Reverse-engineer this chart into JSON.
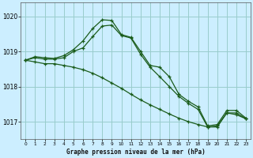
{
  "xlabel": "Graphe pression niveau de la mer (hPa)",
  "background_color": "#cceeff",
  "grid_color": "#99cccc",
  "line_color": "#1a5c1a",
  "xlim": [
    -0.5,
    23.5
  ],
  "ylim": [
    1016.5,
    1020.4
  ],
  "yticks": [
    1017,
    1018,
    1019,
    1020
  ],
  "xticks": [
    0,
    1,
    2,
    3,
    4,
    5,
    6,
    7,
    8,
    9,
    10,
    11,
    12,
    13,
    14,
    15,
    16,
    17,
    18,
    19,
    20,
    21,
    22,
    23
  ],
  "line1_x": [
    0,
    1,
    2,
    3,
    4,
    5,
    6,
    7,
    8,
    9,
    10,
    11,
    12,
    13,
    14,
    15,
    16,
    17,
    18,
    19,
    20,
    21,
    22,
    23
  ],
  "line1_y": [
    1018.75,
    1018.85,
    1018.82,
    1018.8,
    1018.88,
    1019.05,
    1019.3,
    1019.65,
    1019.9,
    1019.88,
    1019.48,
    1019.4,
    1019.0,
    1018.6,
    1018.55,
    1018.28,
    1017.78,
    1017.58,
    1017.42,
    1016.88,
    1016.92,
    1017.32,
    1017.32,
    1017.1
  ],
  "line2_x": [
    0,
    1,
    2,
    3,
    4,
    5,
    6,
    7,
    8,
    9,
    10,
    11,
    12,
    13,
    14,
    15,
    16,
    17,
    18,
    19,
    20,
    21,
    22,
    23
  ],
  "line2_y": [
    1018.75,
    1018.82,
    1018.78,
    1018.78,
    1018.82,
    1019.0,
    1019.1,
    1019.42,
    1019.72,
    1019.75,
    1019.45,
    1019.38,
    1018.92,
    1018.55,
    1018.28,
    1018.0,
    1017.72,
    1017.52,
    1017.35,
    1016.85,
    1016.88,
    1017.25,
    1017.25,
    1017.08
  ],
  "line3_x": [
    0,
    1,
    2,
    3,
    4,
    5,
    6,
    7,
    8,
    9,
    10,
    11,
    12,
    13,
    14,
    15,
    16,
    17,
    18,
    19,
    20,
    21,
    22,
    23
  ],
  "line3_y": [
    1018.75,
    1018.7,
    1018.65,
    1018.65,
    1018.6,
    1018.55,
    1018.48,
    1018.38,
    1018.25,
    1018.1,
    1017.95,
    1017.78,
    1017.62,
    1017.48,
    1017.35,
    1017.22,
    1017.1,
    1017.0,
    1016.92,
    1016.85,
    1016.85,
    1017.25,
    1017.2,
    1017.08
  ]
}
